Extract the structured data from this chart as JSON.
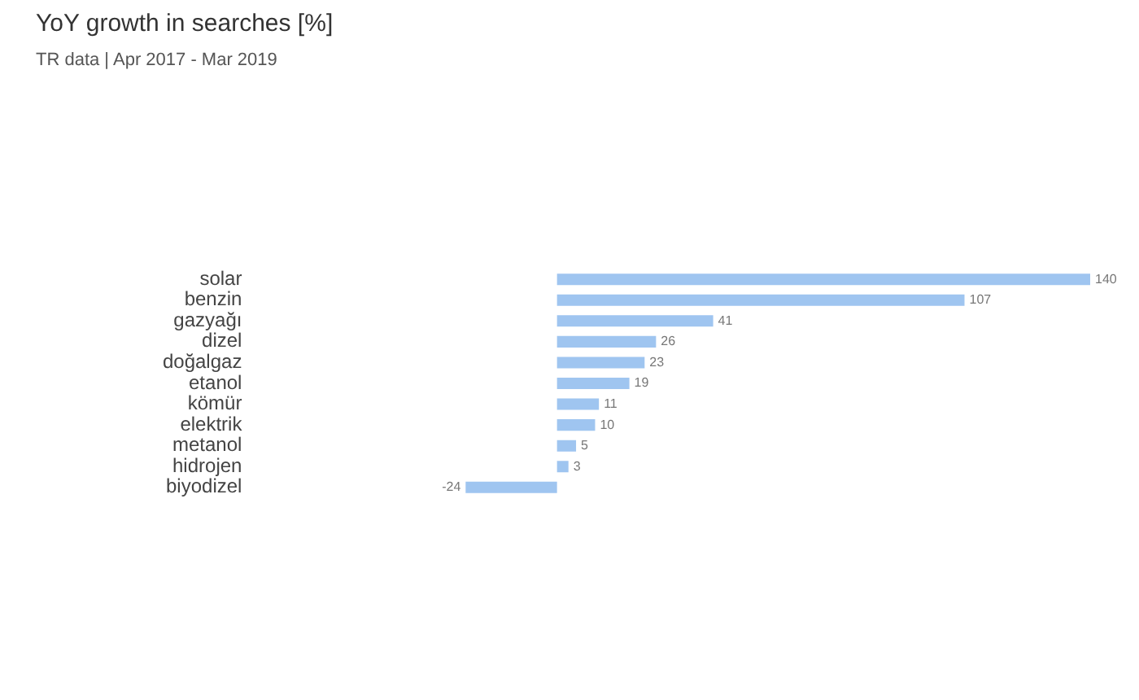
{
  "chart_data": {
    "type": "bar",
    "orientation": "horizontal",
    "title": "YoY growth in searches [%]",
    "subtitle": "TR data | Apr 2017 - Mar 2019",
    "categories": [
      "solar",
      "benzin",
      "gazyağı",
      "dizel",
      "doğalgaz",
      "etanol",
      "kömür",
      "elektrik",
      "metanol",
      "hidrojen",
      "biyodizel"
    ],
    "values": [
      140,
      107,
      41,
      26,
      23,
      19,
      11,
      10,
      5,
      3,
      -24
    ],
    "color": "#9fc5f0",
    "data_labels": true,
    "grid": false,
    "legend": false,
    "tick_labels": "y"
  }
}
